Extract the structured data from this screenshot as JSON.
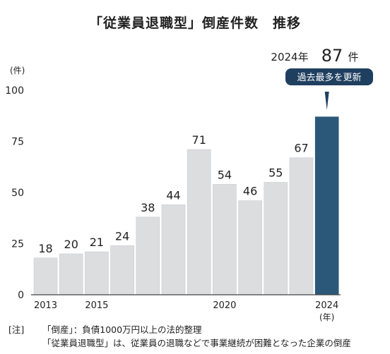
{
  "title": "「従業員退職型」倒産件数　推移",
  "highlight": {
    "year_label": "2024年",
    "value": "87",
    "unit": "件",
    "badge": "過去最多を更新"
  },
  "notes": {
    "tag": "[注]",
    "line1": "「倒産」：負債1000万円以上の法的整理",
    "line2": "「従業員退職型」は、従業員の退職などで事業継続が困難となった企業の倒産"
  },
  "colors": {
    "bar": "#dcdddf",
    "bar_edge": "#c9cbce",
    "highlight": "#2b5878",
    "axis": "#444444",
    "badge": "#1f3f5f"
  },
  "chart_data": {
    "type": "bar",
    "title": "「従業員退職型」倒産件数　推移",
    "ylabel": "(件)",
    "xlabel": "(年)",
    "ylim": [
      0,
      100
    ],
    "yticks": [
      0,
      25,
      50,
      75,
      100
    ],
    "categories": [
      "2013",
      "2014",
      "2015",
      "2016",
      "2017",
      "2018",
      "2019",
      "2020",
      "2021",
      "2022",
      "2023",
      "2024"
    ],
    "x_tick_labels": [
      "2013",
      "",
      "2015",
      "",
      "",
      "",
      "",
      "2020",
      "",
      "",
      "",
      "2024"
    ],
    "values": [
      18,
      20,
      21,
      24,
      38,
      44,
      71,
      54,
      46,
      55,
      67,
      87
    ],
    "data_labels": [
      "18",
      "20",
      "21",
      "24",
      "38",
      "44",
      "71",
      "54",
      "46",
      "55",
      "67",
      ""
    ],
    "highlight_index": 11,
    "grid": false
  }
}
